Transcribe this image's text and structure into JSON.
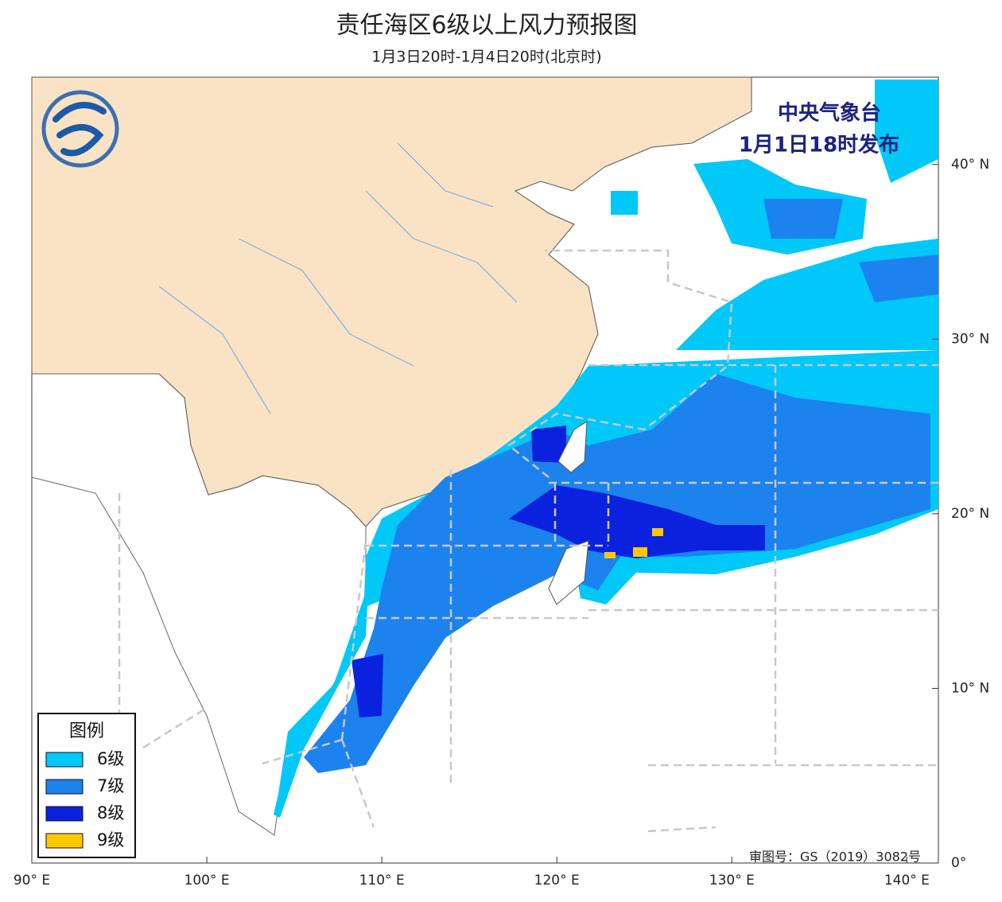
{
  "header": {
    "title": "责任海区6级以上风力预报图",
    "subtitle": "1月3日20时-1月4日20时(北京时)"
  },
  "issuer": {
    "name": "中央气象台",
    "time": "1月1日18时发布"
  },
  "map": {
    "lon_range": [
      90,
      141.8
    ],
    "lat_range": [
      0,
      45
    ],
    "lon_ticks": [
      {
        "value": 90,
        "label": "90° E"
      },
      {
        "value": 100,
        "label": "100° E"
      },
      {
        "value": 110,
        "label": "110° E"
      },
      {
        "value": 120,
        "label": "120° E"
      },
      {
        "value": 130,
        "label": "130° E"
      },
      {
        "value": 140,
        "label": "140° E"
      }
    ],
    "lat_ticks": [
      {
        "value": 0,
        "label": "0°"
      },
      {
        "value": 10,
        "label": "10° N"
      },
      {
        "value": 20,
        "label": "20° N"
      },
      {
        "value": 30,
        "label": "30° N"
      },
      {
        "value": 40,
        "label": "40° N"
      }
    ]
  },
  "legend": {
    "title": "图例",
    "items": [
      {
        "label": "6级",
        "color": "#00c8f8"
      },
      {
        "label": "7级",
        "color": "#1c82ee"
      },
      {
        "label": "8级",
        "color": "#0a22de"
      },
      {
        "label": "9级",
        "color": "#ffc800"
      }
    ]
  },
  "approval": "审图号：GS（2019）3082号"
}
